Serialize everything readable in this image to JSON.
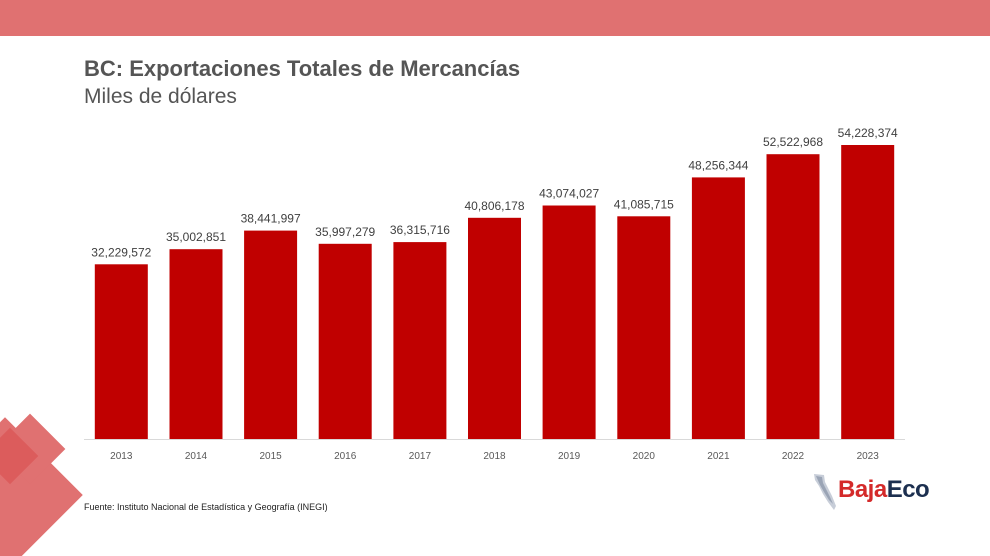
{
  "header": {
    "title": "BC: Exportaciones Totales de Mercancías",
    "subtitle": "Miles de dólares"
  },
  "footer": {
    "source": "Fuente: Instituto Nacional de Estadística y Geografía (INEGI)"
  },
  "logo": {
    "part1": "Baja",
    "part2": "Eco"
  },
  "colors": {
    "bar": "#c00000",
    "accent": "#e07171",
    "logo_red": "#d42a2a",
    "logo_navy": "#1c2f4f"
  },
  "chart_data": {
    "type": "bar",
    "title": "BC: Exportaciones Totales de Mercancías",
    "subtitle": "Miles de dólares",
    "xlabel": "",
    "ylabel": "",
    "categories": [
      "2013",
      "2014",
      "2015",
      "2016",
      "2017",
      "2018",
      "2019",
      "2020",
      "2021",
      "2022",
      "2023"
    ],
    "values": [
      32229572,
      35002851,
      38441997,
      35997279,
      36315716,
      40806178,
      43074027,
      41085715,
      48256344,
      52522968,
      54228374
    ],
    "value_labels": [
      "32,229,572",
      "35,002,851",
      "38,441,997",
      "35,997,279",
      "36,315,716",
      "40,806,178",
      "43,074,027",
      "41,085,715",
      "48,256,344",
      "52,522,968",
      "54,228,374"
    ],
    "ylim": [
      0,
      55000000
    ],
    "grid": false,
    "legend": "none"
  }
}
